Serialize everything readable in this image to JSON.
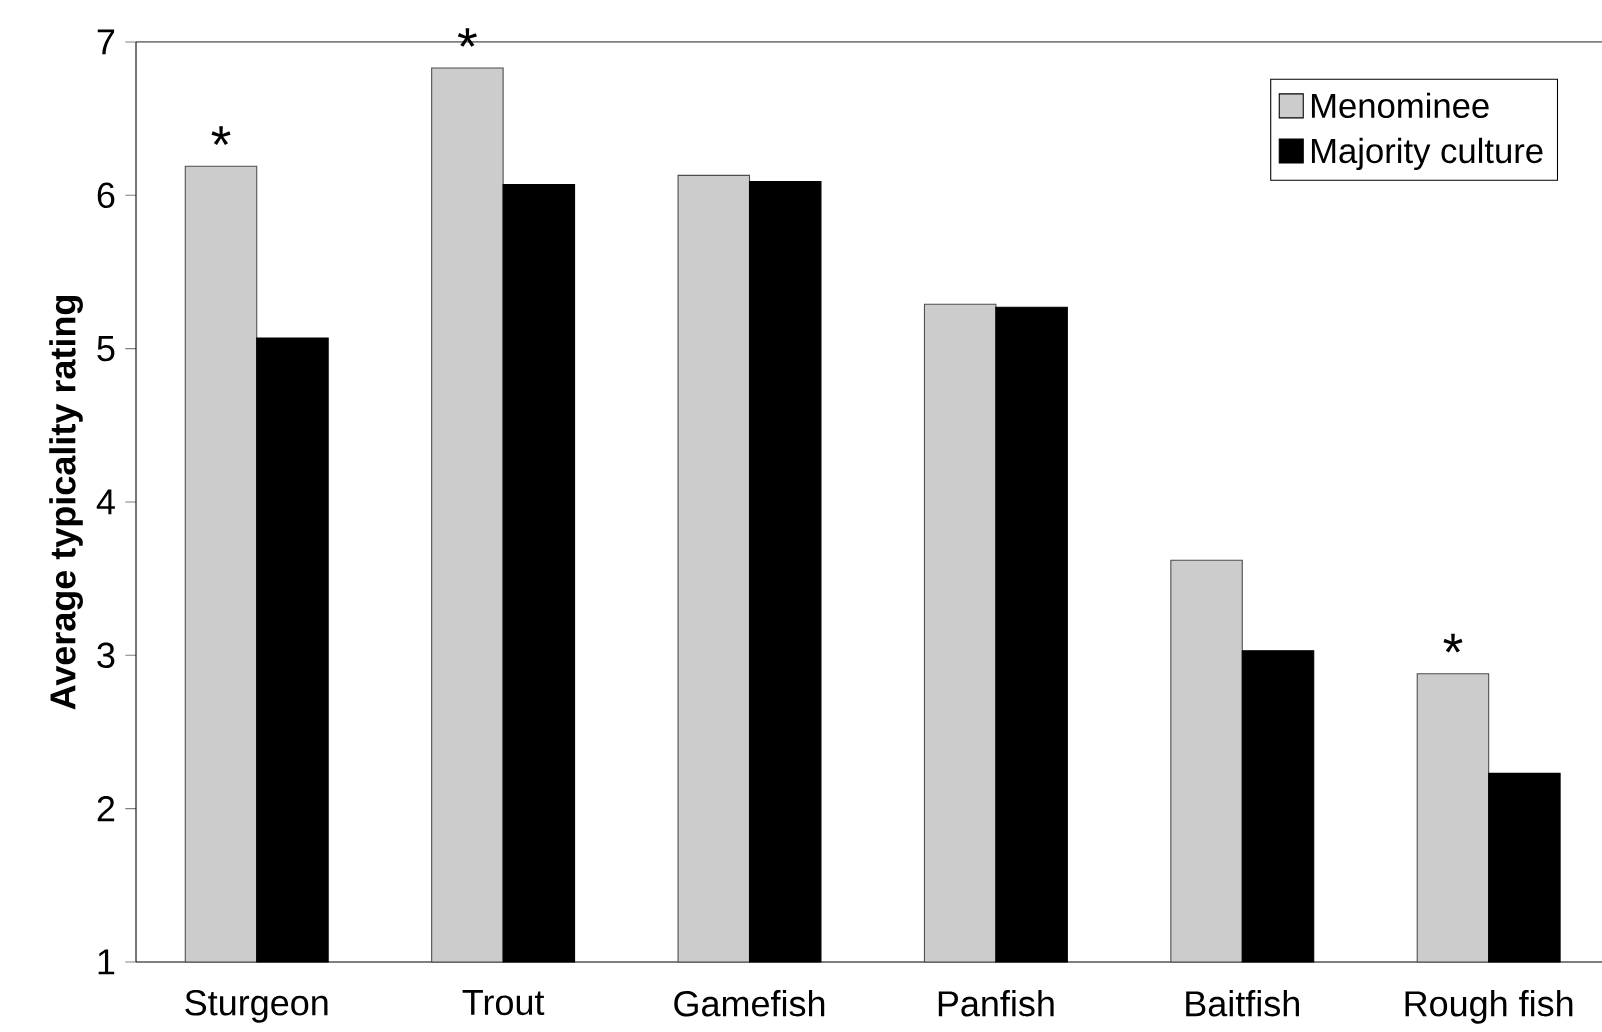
{
  "chart_data": {
    "type": "bar",
    "ylabel": "Average typicality rating",
    "categories": [
      "Sturgeon",
      "Trout",
      "Gamefish",
      "Panfish",
      "Baitfish",
      "Rough fish"
    ],
    "series": [
      {
        "name": "Menominee",
        "color": "#cccccc",
        "values": [
          6.19,
          6.83,
          6.13,
          5.29,
          3.62,
          2.88
        ]
      },
      {
        "name": "Majority culture",
        "color": "#000000",
        "values": [
          5.07,
          6.07,
          6.09,
          5.27,
          3.03,
          2.23
        ]
      }
    ],
    "ylim": [
      1,
      7
    ],
    "yticks": [
      1,
      2,
      3,
      4,
      5,
      6,
      7
    ],
    "legend": "top right",
    "grid": false,
    "annotations": [
      {
        "text": "*",
        "x": "Sturgeon",
        "y": 6.19
      },
      {
        "text": "*",
        "x": "Trout",
        "y": 6.83
      },
      {
        "text": "*",
        "x": "Rough fish",
        "y": 2.88
      }
    ]
  }
}
